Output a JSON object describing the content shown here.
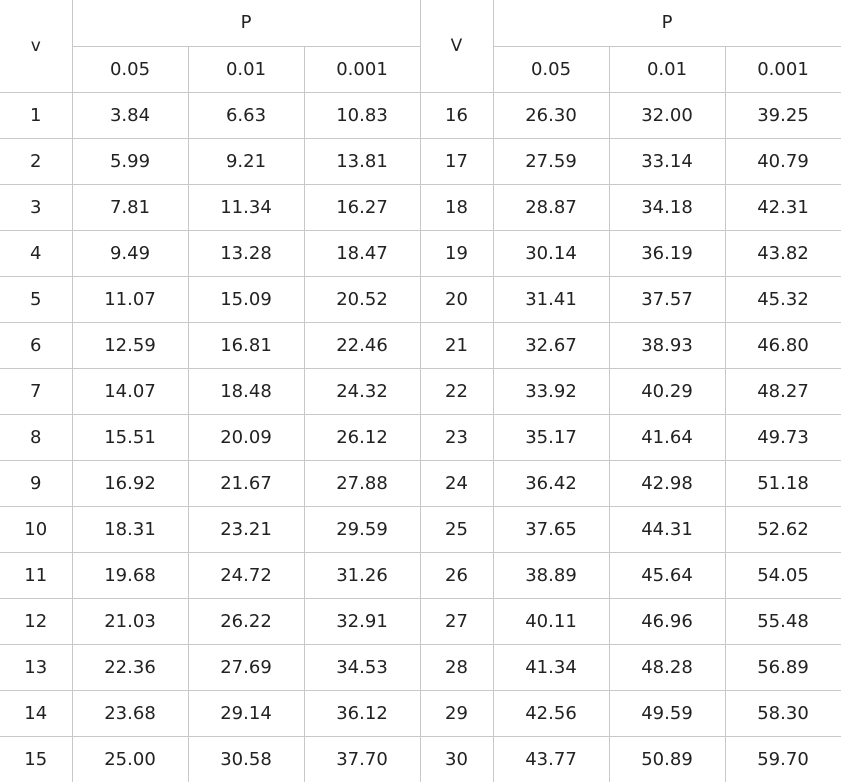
{
  "header": {
    "v_left": "v",
    "v_right": "V",
    "p_left": "P",
    "p_right": "P",
    "p_cols_left": [
      "0.05",
      "0.01",
      "0.001"
    ],
    "p_cols_right": [
      "0.05",
      "0.01",
      "0.001"
    ]
  },
  "rows": [
    {
      "v": "1",
      "a": "3.84",
      "b": "6.63",
      "c": "10.83",
      "v2": "16",
      "a2": "26.30",
      "b2": "32.00",
      "c2": "39.25"
    },
    {
      "v": "2",
      "a": "5.99",
      "b": "9.21",
      "c": "13.81",
      "v2": "17",
      "a2": "27.59",
      "b2": "33.14",
      "c2": "40.79"
    },
    {
      "v": "3",
      "a": "7.81",
      "b": "11.34",
      "c": "16.27",
      "v2": "18",
      "a2": "28.87",
      "b2": "34.18",
      "c2": "42.31"
    },
    {
      "v": "4",
      "a": "9.49",
      "b": "13.28",
      "c": "18.47",
      "v2": "19",
      "a2": "30.14",
      "b2": "36.19",
      "c2": "43.82"
    },
    {
      "v": "5",
      "a": "11.07",
      "b": "15.09",
      "c": "20.52",
      "v2": "20",
      "a2": "31.41",
      "b2": "37.57",
      "c2": "45.32"
    },
    {
      "v": "6",
      "a": "12.59",
      "b": "16.81",
      "c": "22.46",
      "v2": "21",
      "a2": "32.67",
      "b2": "38.93",
      "c2": "46.80"
    },
    {
      "v": "7",
      "a": "14.07",
      "b": "18.48",
      "c": "24.32",
      "v2": "22",
      "a2": "33.92",
      "b2": "40.29",
      "c2": "48.27"
    },
    {
      "v": "8",
      "a": "15.51",
      "b": "20.09",
      "c": "26.12",
      "v2": "23",
      "a2": "35.17",
      "b2": "41.64",
      "c2": "49.73"
    },
    {
      "v": "9",
      "a": "16.92",
      "b": "21.67",
      "c": "27.88",
      "v2": "24",
      "a2": "36.42",
      "b2": "42.98",
      "c2": "51.18"
    },
    {
      "v": "10",
      "a": "18.31",
      "b": "23.21",
      "c": "29.59",
      "v2": "25",
      "a2": "37.65",
      "b2": "44.31",
      "c2": "52.62"
    },
    {
      "v": "11",
      "a": "19.68",
      "b": "24.72",
      "c": "31.26",
      "v2": "26",
      "a2": "38.89",
      "b2": "45.64",
      "c2": "54.05"
    },
    {
      "v": "12",
      "a": "21.03",
      "b": "26.22",
      "c": "32.91",
      "v2": "27",
      "a2": "40.11",
      "b2": "46.96",
      "c2": "55.48"
    },
    {
      "v": "13",
      "a": "22.36",
      "b": "27.69",
      "c": "34.53",
      "v2": "28",
      "a2": "41.34",
      "b2": "48.28",
      "c2": "56.89"
    },
    {
      "v": "14",
      "a": "23.68",
      "b": "29.14",
      "c": "36.12",
      "v2": "29",
      "a2": "42.56",
      "b2": "49.59",
      "c2": "58.30"
    },
    {
      "v": "15",
      "a": "25.00",
      "b": "30.58",
      "c": "37.70",
      "v2": "30",
      "a2": "43.77",
      "b2": "50.89",
      "c2": "59.70"
    }
  ]
}
